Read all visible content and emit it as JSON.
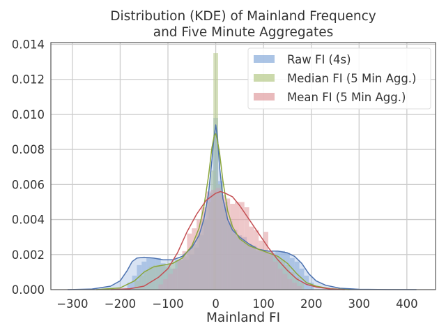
{
  "chart_data": {
    "type": "histogram-kde",
    "title_lines": [
      "Distribution (KDE) of Mainland Frequency",
      "and Five Minute Aggregates"
    ],
    "xlabel": "Mainland FI",
    "ylabel": "",
    "xlim": [
      -345,
      460
    ],
    "ylim": [
      0,
      0.0141
    ],
    "xticks": [
      -300,
      -200,
      -100,
      0,
      100,
      200,
      300,
      400
    ],
    "yticks": [
      0,
      0.002,
      0.004,
      0.006,
      0.008,
      0.01,
      0.012,
      0.014
    ],
    "ytick_labels": [
      "0.000",
      "0.002",
      "0.004",
      "0.006",
      "0.008",
      "0.010",
      "0.012",
      "0.014"
    ],
    "xtick_labels": [
      "−300",
      "−200",
      "−100",
      "0",
      "100",
      "200",
      "300",
      "400"
    ],
    "grid": true,
    "legend_position": "top-right",
    "series": [
      {
        "name": "Raw FI (4s)",
        "color": "#4c72b0",
        "hist_color": "#8fb0dc",
        "kde": {
          "x": [
            -310,
            -260,
            -220,
            -200,
            -185,
            -175,
            -165,
            -150,
            -130,
            -110,
            -90,
            -70,
            -50,
            -35,
            -25,
            -15,
            -8,
            -4,
            0,
            4,
            8,
            15,
            25,
            35,
            50,
            70,
            90,
            110,
            130,
            150,
            165,
            180,
            195,
            210,
            230,
            260,
            300,
            360,
            420
          ],
          "y": [
            0,
            3e-05,
            0.0002,
            0.0005,
            0.0011,
            0.0016,
            0.0018,
            0.00185,
            0.0018,
            0.0017,
            0.0017,
            0.0019,
            0.0024,
            0.0031,
            0.004,
            0.0055,
            0.0074,
            0.0086,
            0.0094,
            0.0086,
            0.007,
            0.0052,
            0.004,
            0.0034,
            0.003,
            0.0026,
            0.0023,
            0.0022,
            0.0022,
            0.0021,
            0.0019,
            0.0015,
            0.0009,
            0.0005,
            0.00025,
            8e-05,
            2e-05,
            5e-06,
            0
          ]
        },
        "hist": [
          {
            "x": -185,
            "w": 10,
            "h": 0.0004
          },
          {
            "x": -175,
            "w": 10,
            "h": 0.0008
          },
          {
            "x": -165,
            "w": 10,
            "h": 0.0014
          },
          {
            "x": -155,
            "w": 10,
            "h": 0.0016
          },
          {
            "x": -145,
            "w": 10,
            "h": 0.0018
          },
          {
            "x": -135,
            "w": 10,
            "h": 0.0018
          },
          {
            "x": -125,
            "w": 10,
            "h": 0.0018
          },
          {
            "x": -115,
            "w": 10,
            "h": 0.0015
          },
          {
            "x": -105,
            "w": 10,
            "h": 0.0013
          },
          {
            "x": -95,
            "w": 10,
            "h": 0.0012
          },
          {
            "x": -85,
            "w": 10,
            "h": 0.0017
          },
          {
            "x": -75,
            "w": 10,
            "h": 0.0017
          },
          {
            "x": -65,
            "w": 10,
            "h": 0.0017
          },
          {
            "x": -55,
            "w": 10,
            "h": 0.002
          },
          {
            "x": -45,
            "w": 10,
            "h": 0.0024
          },
          {
            "x": -35,
            "w": 10,
            "h": 0.0031
          },
          {
            "x": -25,
            "w": 10,
            "h": 0.004
          },
          {
            "x": -15,
            "w": 10,
            "h": 0.0055
          },
          {
            "x": -5,
            "w": 10,
            "h": 0.0098
          },
          {
            "x": 5,
            "w": 10,
            "h": 0.0062
          },
          {
            "x": 15,
            "w": 10,
            "h": 0.005
          },
          {
            "x": 25,
            "w": 10,
            "h": 0.0039
          },
          {
            "x": 35,
            "w": 10,
            "h": 0.0034
          },
          {
            "x": 45,
            "w": 10,
            "h": 0.0031
          },
          {
            "x": 55,
            "w": 10,
            "h": 0.003
          },
          {
            "x": 65,
            "w": 10,
            "h": 0.0026
          },
          {
            "x": 75,
            "w": 10,
            "h": 0.0025
          },
          {
            "x": 85,
            "w": 10,
            "h": 0.0022
          },
          {
            "x": 95,
            "w": 10,
            "h": 0.0022
          },
          {
            "x": 105,
            "w": 10,
            "h": 0.0021
          },
          {
            "x": 115,
            "w": 10,
            "h": 0.0021
          },
          {
            "x": 125,
            "w": 10,
            "h": 0.0022
          },
          {
            "x": 135,
            "w": 10,
            "h": 0.0022
          },
          {
            "x": 145,
            "w": 10,
            "h": 0.0021
          },
          {
            "x": 155,
            "w": 10,
            "h": 0.0018
          },
          {
            "x": 165,
            "w": 10,
            "h": 0.0016
          },
          {
            "x": 175,
            "w": 10,
            "h": 0.0012
          },
          {
            "x": 185,
            "w": 10,
            "h": 0.0008
          },
          {
            "x": 195,
            "w": 10,
            "h": 0.0004
          }
        ]
      },
      {
        "name": "Median FI (5 Min Agg.)",
        "color": "#8aa63a",
        "hist_color": "#b9cc8f",
        "kde": {
          "x": [
            -250,
            -200,
            -170,
            -150,
            -130,
            -110,
            -90,
            -70,
            -50,
            -35,
            -25,
            -15,
            -8,
            -3,
            0,
            3,
            8,
            15,
            25,
            35,
            50,
            70,
            90,
            110,
            130,
            150,
            170,
            190,
            210,
            240,
            280
          ],
          "y": [
            0,
            0.0001,
            0.0005,
            0.001,
            0.0013,
            0.0014,
            0.0015,
            0.0018,
            0.0025,
            0.0035,
            0.0047,
            0.0065,
            0.0081,
            0.0088,
            0.0089,
            0.0086,
            0.0078,
            0.0062,
            0.0045,
            0.0036,
            0.0029,
            0.0025,
            0.0023,
            0.0021,
            0.0019,
            0.0015,
            0.0009,
            0.0004,
            0.0002,
            5e-05,
            0
          ]
        },
        "hist": [
          {
            "x": -170,
            "w": 10,
            "h": 0.0005
          },
          {
            "x": -160,
            "w": 10,
            "h": 0.0008
          },
          {
            "x": -150,
            "w": 10,
            "h": 0.0011
          },
          {
            "x": -140,
            "w": 10,
            "h": 0.0013
          },
          {
            "x": -130,
            "w": 10,
            "h": 0.0014
          },
          {
            "x": -120,
            "w": 10,
            "h": 0.0014
          },
          {
            "x": -110,
            "w": 10,
            "h": 0.0014
          },
          {
            "x": -100,
            "w": 10,
            "h": 0.0015
          },
          {
            "x": -90,
            "w": 10,
            "h": 0.0016
          },
          {
            "x": -80,
            "w": 10,
            "h": 0.0017
          },
          {
            "x": -70,
            "w": 10,
            "h": 0.0019
          },
          {
            "x": -60,
            "w": 10,
            "h": 0.0023
          },
          {
            "x": -50,
            "w": 10,
            "h": 0.0026
          },
          {
            "x": -40,
            "w": 10,
            "h": 0.0032
          },
          {
            "x": -30,
            "w": 10,
            "h": 0.004
          },
          {
            "x": -20,
            "w": 10,
            "h": 0.005
          },
          {
            "x": -10,
            "w": 10,
            "h": 0.0068
          },
          {
            "x": -5,
            "w": 10,
            "h": 0.0135
          },
          {
            "x": 5,
            "w": 10,
            "h": 0.006
          },
          {
            "x": 15,
            "w": 10,
            "h": 0.0046
          },
          {
            "x": 25,
            "w": 10,
            "h": 0.0038
          },
          {
            "x": 35,
            "w": 10,
            "h": 0.0032
          },
          {
            "x": 45,
            "w": 10,
            "h": 0.003
          },
          {
            "x": 55,
            "w": 10,
            "h": 0.0028
          },
          {
            "x": 65,
            "w": 10,
            "h": 0.0026
          },
          {
            "x": 75,
            "w": 10,
            "h": 0.0024
          },
          {
            "x": 85,
            "w": 10,
            "h": 0.0023
          },
          {
            "x": 95,
            "w": 10,
            "h": 0.0022
          },
          {
            "x": 105,
            "w": 10,
            "h": 0.0021
          },
          {
            "x": 115,
            "w": 10,
            "h": 0.002
          },
          {
            "x": 125,
            "w": 10,
            "h": 0.0019
          },
          {
            "x": 135,
            "w": 10,
            "h": 0.0017
          },
          {
            "x": 145,
            "w": 10,
            "h": 0.0014
          },
          {
            "x": 155,
            "w": 10,
            "h": 0.001
          },
          {
            "x": 165,
            "w": 10,
            "h": 0.0007
          },
          {
            "x": 175,
            "w": 10,
            "h": 0.0004
          }
        ]
      },
      {
        "name": "Mean FI (5 Min Agg.)",
        "color": "#c44e52",
        "hist_color": "#e2a3a6",
        "kde": {
          "x": [
            -220,
            -180,
            -150,
            -120,
            -100,
            -80,
            -60,
            -40,
            -20,
            0,
            10,
            20,
            35,
            50,
            70,
            90,
            110,
            130,
            150,
            170,
            190,
            210,
            240,
            270
          ],
          "y": [
            0,
            5e-05,
            0.0002,
            0.0007,
            0.0012,
            0.0021,
            0.0033,
            0.0043,
            0.0051,
            0.0055,
            0.0056,
            0.0055,
            0.0053,
            0.0048,
            0.004,
            0.0032,
            0.0024,
            0.0017,
            0.0011,
            0.0006,
            0.0003,
            0.00015,
            4e-05,
            0
          ]
        },
        "hist": [
          {
            "x": -120,
            "w": 10,
            "h": 0.0003
          },
          {
            "x": -110,
            "w": 10,
            "h": 0.0006
          },
          {
            "x": -100,
            "w": 10,
            "h": 0.0009
          },
          {
            "x": -90,
            "w": 10,
            "h": 0.0012
          },
          {
            "x": -80,
            "w": 10,
            "h": 0.0017
          },
          {
            "x": -70,
            "w": 10,
            "h": 0.0022
          },
          {
            "x": -60,
            "w": 10,
            "h": 0.0032
          },
          {
            "x": -50,
            "w": 10,
            "h": 0.0035
          },
          {
            "x": -40,
            "w": 10,
            "h": 0.004
          },
          {
            "x": -30,
            "w": 10,
            "h": 0.0047
          },
          {
            "x": -20,
            "w": 10,
            "h": 0.0056
          },
          {
            "x": -10,
            "w": 10,
            "h": 0.0057
          },
          {
            "x": 0,
            "w": 10,
            "h": 0.0058
          },
          {
            "x": 10,
            "w": 10,
            "h": 0.0054
          },
          {
            "x": 20,
            "w": 10,
            "h": 0.0052
          },
          {
            "x": 30,
            "w": 10,
            "h": 0.0049
          },
          {
            "x": 40,
            "w": 10,
            "h": 0.005
          },
          {
            "x": 50,
            "w": 10,
            "h": 0.005
          },
          {
            "x": 60,
            "w": 10,
            "h": 0.0047
          },
          {
            "x": 70,
            "w": 10,
            "h": 0.0036
          },
          {
            "x": 80,
            "w": 10,
            "h": 0.0034
          },
          {
            "x": 90,
            "w": 10,
            "h": 0.0028
          },
          {
            "x": 100,
            "w": 10,
            "h": 0.0033
          },
          {
            "x": 110,
            "w": 10,
            "h": 0.0022
          },
          {
            "x": 120,
            "w": 10,
            "h": 0.0016
          },
          {
            "x": 130,
            "w": 10,
            "h": 0.0012
          },
          {
            "x": 140,
            "w": 10,
            "h": 0.0009
          },
          {
            "x": 150,
            "w": 10,
            "h": 0.0006
          },
          {
            "x": 160,
            "w": 10,
            "h": 0.0004
          },
          {
            "x": 170,
            "w": 10,
            "h": 0.0002
          }
        ]
      }
    ]
  }
}
